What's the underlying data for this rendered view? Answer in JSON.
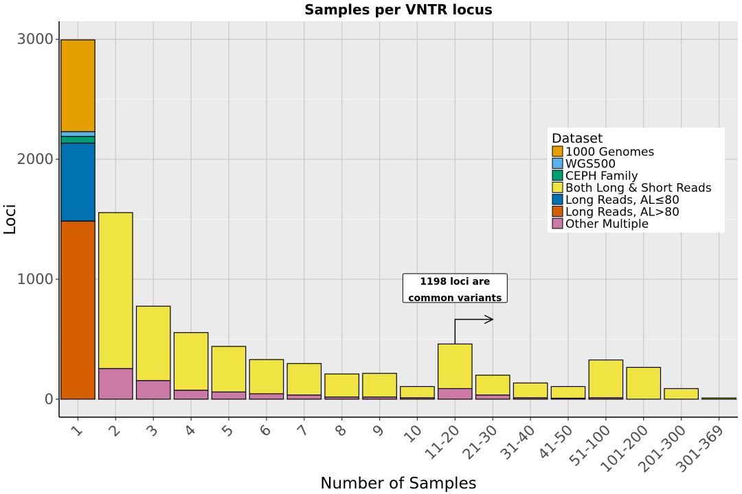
{
  "chart_data": {
    "type": "bar",
    "stacked": true,
    "title": "Samples per VNTR locus",
    "xlabel": "Number of Samples",
    "ylabel": "Loci",
    "ylim": [
      -150,
      3150
    ],
    "yticks": [
      0,
      1000,
      2000,
      3000
    ],
    "grid": true,
    "legend_position": "right",
    "categories": [
      "1",
      "2",
      "3",
      "4",
      "5",
      "6",
      "7",
      "8",
      "9",
      "10",
      "11-20",
      "21-30",
      "31-40",
      "41-50",
      "51-100",
      "101-200",
      "201-300",
      "301-369"
    ],
    "legend_title": "Dataset",
    "legend_order": [
      "1000 Genomes",
      "WGS500",
      "CEPH Family",
      "Both Long & Short Reads",
      "Long Reads, AL≤80",
      "Long Reads, AL>80",
      "Other Multiple"
    ],
    "series": [
      {
        "name": "Other Multiple",
        "color": "#CC79A7",
        "values": [
          0,
          255,
          155,
          75,
          60,
          45,
          35,
          18,
          18,
          12,
          88,
          35,
          12,
          8,
          12,
          0,
          0,
          0
        ]
      },
      {
        "name": "Long Reads, AL>80",
        "color": "#D55E00",
        "values": [
          1485,
          0,
          0,
          0,
          0,
          0,
          0,
          0,
          0,
          0,
          0,
          0,
          0,
          0,
          0,
          0,
          0,
          0
        ]
      },
      {
        "name": "Long Reads, AL≤80",
        "color": "#0072B2",
        "values": [
          650,
          0,
          0,
          0,
          0,
          0,
          0,
          0,
          0,
          0,
          0,
          0,
          0,
          0,
          0,
          0,
          0,
          0
        ]
      },
      {
        "name": "Both Long & Short Reads",
        "color": "#F0E442",
        "values": [
          0,
          1300,
          620,
          480,
          380,
          285,
          262,
          192,
          197,
          93,
          372,
          165,
          123,
          97,
          315,
          265,
          88,
          10
        ]
      },
      {
        "name": "CEPH Family",
        "color": "#009E73",
        "values": [
          55,
          0,
          0,
          0,
          0,
          0,
          0,
          0,
          0,
          0,
          0,
          0,
          0,
          0,
          0,
          0,
          0,
          0
        ]
      },
      {
        "name": "WGS500",
        "color": "#56B4E9",
        "values": [
          40,
          0,
          0,
          0,
          0,
          0,
          0,
          0,
          0,
          0,
          0,
          0,
          0,
          0,
          0,
          0,
          0,
          0
        ]
      },
      {
        "name": "1000 Genomes",
        "color": "#E69F00",
        "values": [
          765,
          0,
          0,
          0,
          0,
          0,
          0,
          0,
          0,
          0,
          0,
          0,
          0,
          0,
          0,
          0,
          0,
          0
        ]
      }
    ],
    "annotation": {
      "lines": [
        "1198 loci are",
        "common variants"
      ],
      "anchor_category": "11-20",
      "arrow_from_y": 460,
      "arrow_turn_y": 665,
      "arrow_to_category": "21-30",
      "label_y": 1000
    }
  }
}
